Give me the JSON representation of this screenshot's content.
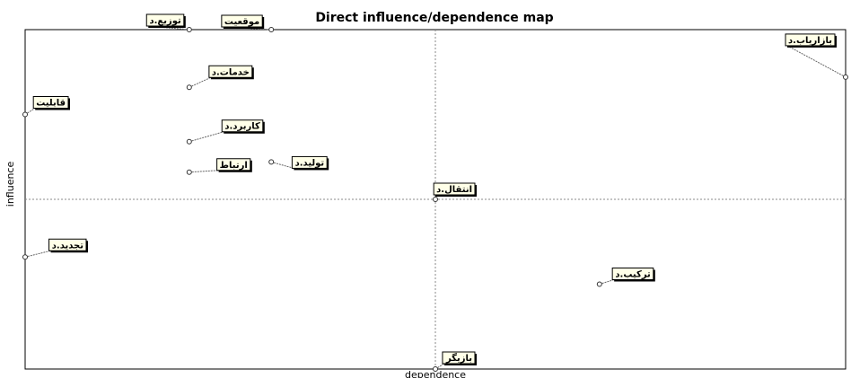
{
  "chart_data": {
    "type": "scatter",
    "title": "Direct influence/dependence map",
    "xlabel": "dependence",
    "ylabel": "influence",
    "grid": false,
    "points": [
      {
        "label": "بازاریاب.د",
        "x": 1.0,
        "y": 0.86
      },
      {
        "label": "توزیع.د",
        "x": 0.2,
        "y": 1.0
      },
      {
        "label": "موقعیت",
        "x": 0.3,
        "y": 1.0
      },
      {
        "label": "خدمات.د",
        "x": 0.2,
        "y": 0.83
      },
      {
        "label": "قابلیت",
        "x": 0.0,
        "y": 0.75
      },
      {
        "label": "کاربرد.د",
        "x": 0.2,
        "y": 0.67
      },
      {
        "label": "تولید.د",
        "x": 0.3,
        "y": 0.61
      },
      {
        "label": "ارتباط",
        "x": 0.2,
        "y": 0.58
      },
      {
        "label": "انتقال.د",
        "x": 0.5,
        "y": 0.5
      },
      {
        "label": "تجدید.د",
        "x": 0.0,
        "y": 0.33
      },
      {
        "label": "ترکیب.د",
        "x": 0.7,
        "y": 0.25
      },
      {
        "label": "بازیگر",
        "x": 0.5,
        "y": 0.0
      }
    ]
  }
}
